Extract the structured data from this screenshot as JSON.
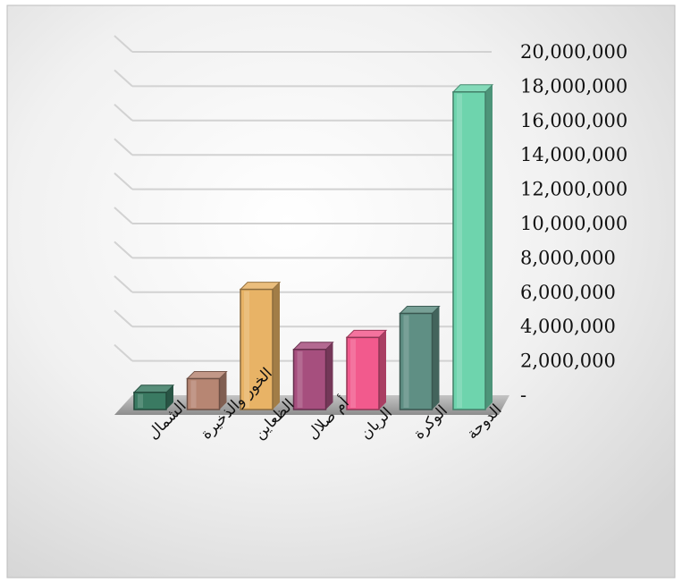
{
  "chart_data": {
    "type": "bar",
    "title": "",
    "xlabel": "",
    "ylabel": "",
    "categories": [
      "الشمال",
      "الخور والذخيرة",
      "الظعاين",
      "أم صلال",
      "الريان",
      "الوكرة",
      "الدوحة"
    ],
    "values": [
      1000000,
      1800000,
      7000000,
      3500000,
      4200000,
      5600000,
      18500000
    ],
    "ylim": [
      0,
      20000000
    ],
    "y_ticks": [
      "-",
      "2,000,000",
      "4,000,000",
      "6,000,000",
      "8,000,000",
      "10,000,000",
      "12,000,000",
      "14,000,000",
      "16,000,000",
      "18,000,000",
      "20,000,000"
    ],
    "grid": true,
    "legend": "none",
    "colors": [
      "#3a7a62",
      "#b78673",
      "#e8b366",
      "#a64f7e",
      "#f25a8d",
      "#5f8f84",
      "#6ed4ad"
    ]
  }
}
